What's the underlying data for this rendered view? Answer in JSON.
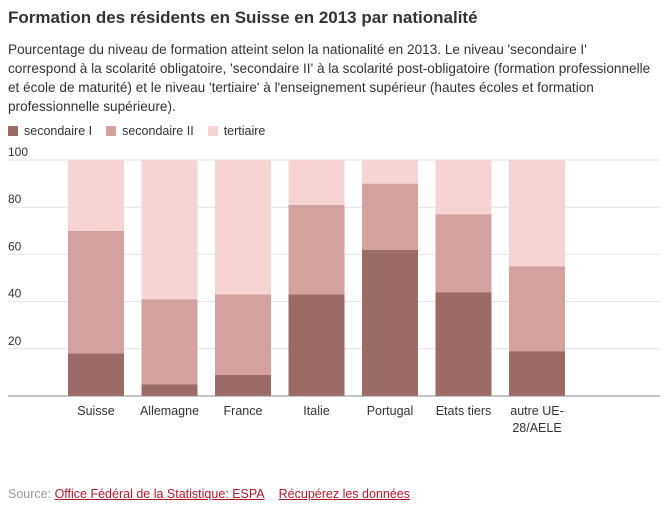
{
  "title": "Formation des résidents en Suisse en 2013 par nationalité",
  "subtitle": "Pourcentage du niveau de formation atteint selon la nationalité en 2013. Le niveau 'secondaire I' correspond à la scolarité obligatoire, 'secondaire II' à la scolarité post-obligatoire (formation professionnelle et école de maturité) et le niveau 'tertiaire' à l'enseignement supérieur (hautes écoles et formation professionnelle supérieure).",
  "source": {
    "prefix": "Source:",
    "link_label": "Office Fédéral de la Statistique: ESPA",
    "data_link_label": "Récupérez les données"
  },
  "chart_data": {
    "type": "bar",
    "stacked": true,
    "categories": [
      "Suisse",
      "Allemagne",
      "France",
      "Italie",
      "Portugal",
      "Etats tiers",
      "autre UE-28/AELE"
    ],
    "series": [
      {
        "name": "secondaire I",
        "color": "#9c6a67",
        "values": [
          18,
          5,
          9,
          43,
          62,
          44,
          19
        ]
      },
      {
        "name": "secondaire II",
        "color": "#d4a19e",
        "values": [
          52,
          36,
          34,
          38,
          28,
          33,
          36
        ]
      },
      {
        "name": "tertiaire",
        "color": "#f7d4d3",
        "values": [
          30,
          59,
          57,
          19,
          10,
          23,
          45
        ]
      }
    ],
    "ylim": [
      0,
      100
    ],
    "yticks": [
      20,
      40,
      60,
      80,
      100
    ],
    "grid": true,
    "legend": "top-left"
  }
}
